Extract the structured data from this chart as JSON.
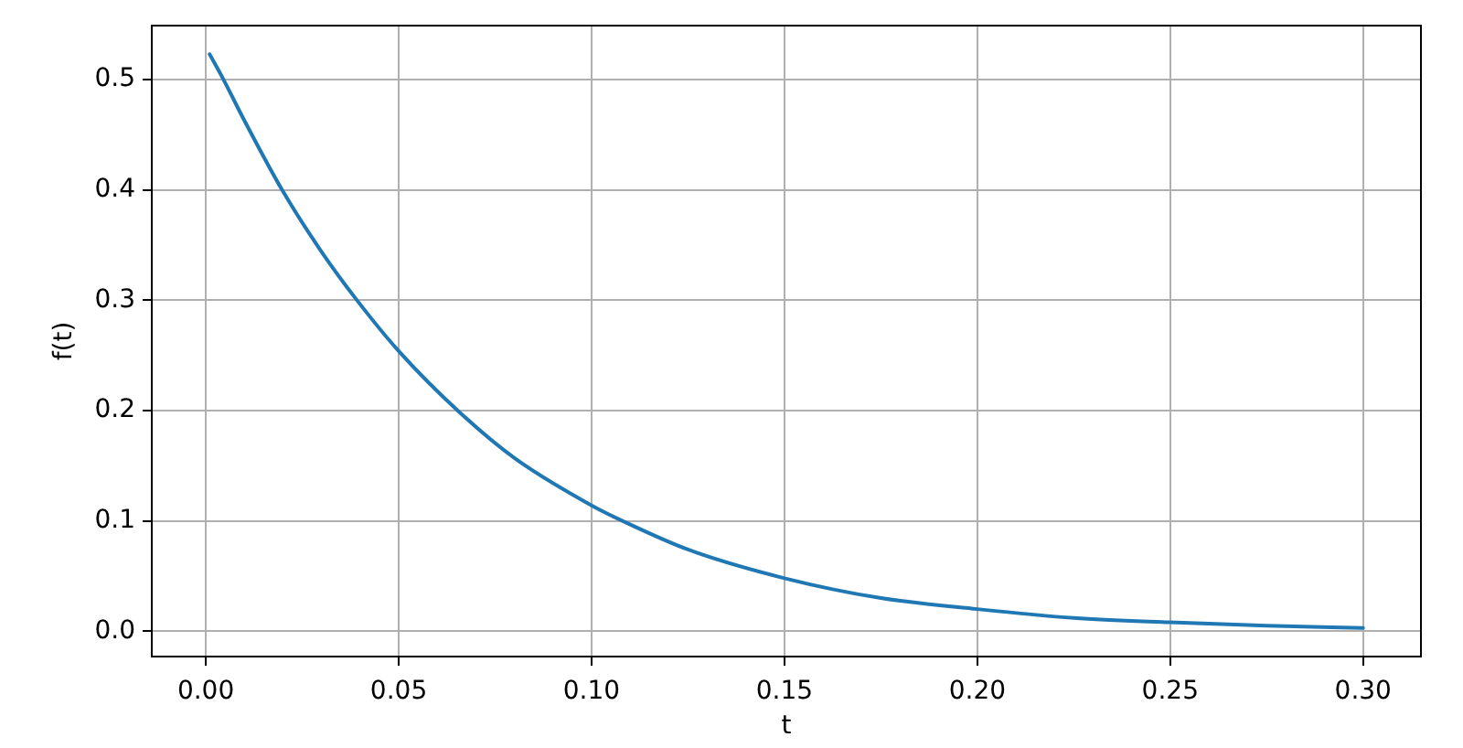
{
  "chart_data": {
    "type": "line",
    "xlabel": "t",
    "ylabel": "f(t)",
    "x": [
      0.001,
      0.0046,
      0.01,
      0.0198,
      0.03,
      0.0392,
      0.05,
      0.0653,
      0.08,
      0.1,
      0.108,
      0.125,
      0.15,
      0.175,
      0.2,
      0.225,
      0.25,
      0.275,
      0.3
    ],
    "values": [
      0.523,
      0.5,
      0.463,
      0.4,
      0.344,
      0.3,
      0.254,
      0.2,
      0.157,
      0.114,
      0.1,
      0.074,
      0.048,
      0.03,
      0.02,
      0.012,
      0.008,
      0.005,
      0.003
    ],
    "color": "#1f77b4",
    "xlim": [
      -0.014,
      0.315
    ],
    "ylim": [
      -0.023,
      0.549
    ],
    "xticks": [
      {
        "value": 0,
        "label": "0.00"
      },
      {
        "value": 0.05,
        "label": "0.05"
      },
      {
        "value": 0.1,
        "label": "0.10"
      },
      {
        "value": 0.15,
        "label": "0.15"
      },
      {
        "value": 0.2,
        "label": "0.20"
      },
      {
        "value": 0.25,
        "label": "0.25"
      },
      {
        "value": 0.3,
        "label": "0.30"
      }
    ],
    "yticks": [
      {
        "value": 0,
        "label": "0.0"
      },
      {
        "value": 0.1,
        "label": "0.1"
      },
      {
        "value": 0.2,
        "label": "0.2"
      },
      {
        "value": 0.3,
        "label": "0.3"
      },
      {
        "value": 0.4,
        "label": "0.4"
      },
      {
        "value": 0.5,
        "label": "0.5"
      }
    ],
    "grid": true,
    "legend": false,
    "marker": "none",
    "line_style": "solid"
  }
}
